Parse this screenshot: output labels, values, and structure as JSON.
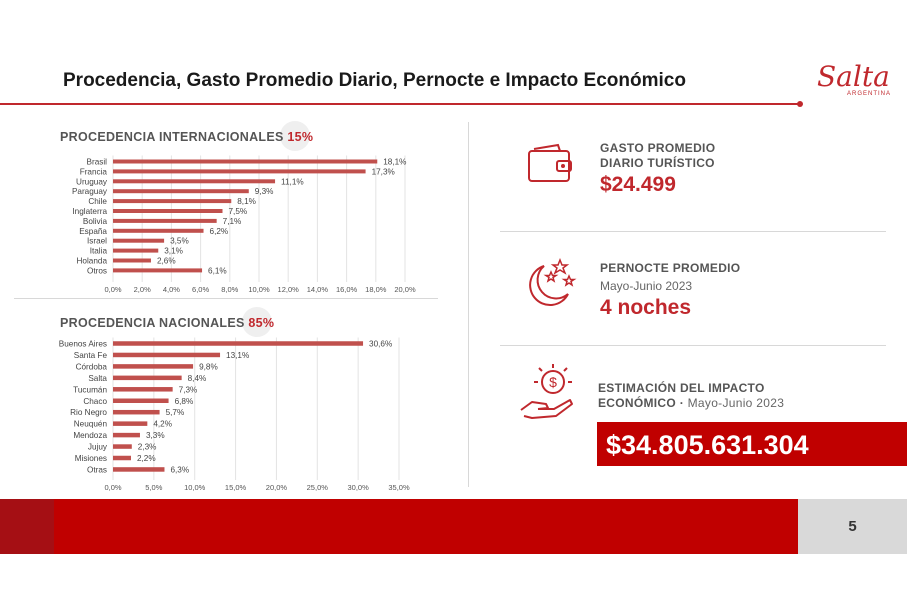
{
  "slide": {
    "title": "Procedencia, Gasto Promedio Diario, Pernocte e Impacto Económico",
    "page_number": "5",
    "logo_text": "Salta",
    "logo_subtext": "ARGENTINA"
  },
  "colors": {
    "accent": "#c0282d",
    "bar": "#c0504d",
    "footer_red": "#c00000",
    "footer_dark": "#a50f14",
    "footer_grey": "#d9d9d9"
  },
  "international": {
    "label": "PROCEDENCIA INTERNACIONALES",
    "pct": "15%"
  },
  "national": {
    "label": "PROCEDENCIA NACIONALES",
    "pct": "85%"
  },
  "chart_data": [
    {
      "type": "bar",
      "orientation": "horizontal",
      "title": "PROCEDENCIA INTERNACIONALES 15%",
      "categories": [
        "Brasil",
        "Francia",
        "Uruguay",
        "Paraguay",
        "Chile",
        "Inglaterra",
        "Bolivia",
        "España",
        "Israel",
        "Italia",
        "Holanda",
        "Otros"
      ],
      "values": [
        18.1,
        17.3,
        11.1,
        9.3,
        8.1,
        7.5,
        7.1,
        6.2,
        3.5,
        3.1,
        2.6,
        6.1
      ],
      "value_labels": [
        "18,1%",
        "17,3%",
        "11,1%",
        "9,3%",
        "8,1%",
        "7,5%",
        "7,1%",
        "6,2%",
        "3,5%",
        "3,1%",
        "2,6%",
        "6,1%"
      ],
      "xlim": [
        0,
        20
      ],
      "ticks": [
        0,
        2,
        4,
        6,
        8,
        10,
        12,
        14,
        16,
        18,
        20
      ],
      "tick_labels": [
        "0,0%",
        "2,0%",
        "4,0%",
        "6,0%",
        "8,0%",
        "10,0%",
        "12,0%",
        "14,0%",
        "16,0%",
        "18,0%",
        "20,0%"
      ],
      "grid": true
    },
    {
      "type": "bar",
      "orientation": "horizontal",
      "title": "PROCEDENCIA NACIONALES 85%",
      "categories": [
        "Buenos Aires",
        "Santa Fe",
        "Córdoba",
        "Salta",
        "Tucumán",
        "Chaco",
        "Rio Negro",
        "Neuquén",
        "Mendoza",
        "Jujuy",
        "Misiones",
        "Otras"
      ],
      "values": [
        30.6,
        13.1,
        9.8,
        8.4,
        7.3,
        6.8,
        5.7,
        4.2,
        3.3,
        2.3,
        2.2,
        6.3
      ],
      "value_labels": [
        "30,6%",
        "13,1%",
        "9,8%",
        "8,4%",
        "7,3%",
        "6,8%",
        "5,7%",
        "4,2%",
        "3,3%",
        "2,3%",
        "2,2%",
        "6,3%"
      ],
      "xlim": [
        0,
        35
      ],
      "ticks": [
        0,
        5,
        10,
        15,
        20,
        25,
        30,
        35
      ],
      "tick_labels": [
        "0,0%",
        "5,0%",
        "10,0%",
        "15,0%",
        "20,0%",
        "25,0%",
        "30,0%",
        "35,0%"
      ],
      "grid": true
    }
  ],
  "kpis": {
    "gasto": {
      "label_line1": "GASTO PROMEDIO",
      "label_line2": "DIARIO TURÍSTICO",
      "value": "$24.499",
      "icon": "wallet-icon"
    },
    "pernocte": {
      "label": "PERNOCTE PROMEDIO",
      "period": "Mayo-Junio 2023",
      "value": "4 noches",
      "icon": "moon-stars-icon"
    },
    "impacto": {
      "label_line1": "ESTIMACIÓN DEL IMPACTO",
      "label_line2": "ECONÓMICO",
      "separator": "·",
      "period": "Mayo-Junio 2023",
      "value": "$34.805.631.304",
      "icon": "hand-coin-icon"
    }
  }
}
